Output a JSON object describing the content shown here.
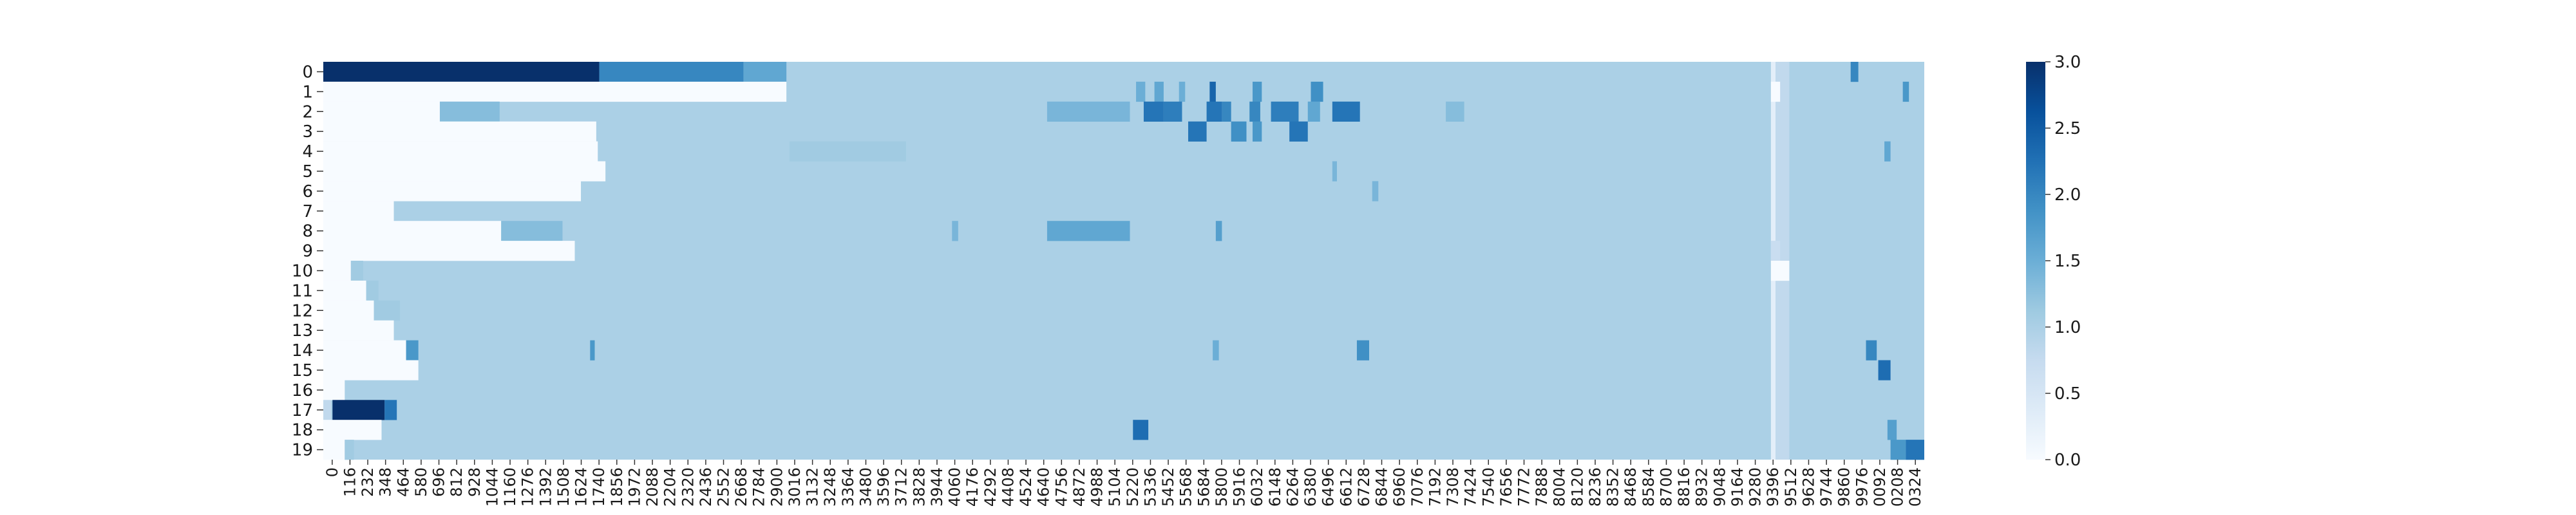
{
  "chart_data": {
    "type": "heatmap",
    "title": "",
    "xlabel": "",
    "ylabel": "",
    "color_scale": {
      "name": "Blues",
      "min": 0.0,
      "max": 3.0
    },
    "colorbar": {
      "ticks": [
        0.0,
        0.5,
        1.0,
        1.5,
        2.0,
        2.5,
        3.0
      ],
      "tick_labels": [
        "0.0",
        "0.5",
        "1.0",
        "1.5",
        "2.0",
        "2.5",
        "3.0"
      ]
    },
    "row_labels": [
      "0",
      "1",
      "2",
      "3",
      "4",
      "5",
      "6",
      "7",
      "8",
      "9",
      "10",
      "11",
      "12",
      "13",
      "14",
      "15",
      "16",
      "17",
      "18",
      "19"
    ],
    "x_tick_labels": [
      "0",
      "116",
      "232",
      "348",
      "464",
      "580",
      "696",
      "812",
      "928",
      "1044",
      "1160",
      "1276",
      "1392",
      "1508",
      "1624",
      "1740",
      "1856",
      "1972",
      "2088",
      "2204",
      "2320",
      "2436",
      "2552",
      "2668",
      "2784",
      "2900",
      "3016",
      "3132",
      "3248",
      "3364",
      "3480",
      "3596",
      "3712",
      "3828",
      "3944",
      "4060",
      "4176",
      "4292",
      "4408",
      "4524",
      "4640",
      "4756",
      "4872",
      "4988",
      "5104",
      "5220",
      "5336",
      "5452",
      "5568",
      "5684",
      "5800",
      "5916",
      "6032",
      "6148",
      "6264",
      "6380",
      "6496",
      "6612",
      "6728",
      "6844",
      "6960",
      "7076",
      "7192",
      "7308",
      "7424",
      "7540",
      "7656",
      "7772",
      "7888",
      "8004",
      "8120",
      "8236",
      "8352",
      "8468",
      "8584",
      "8700",
      "8816",
      "8932",
      "9048",
      "9164",
      "9280",
      "9396",
      "9512",
      "9628",
      "9744",
      "9860",
      "9976",
      "0092",
      "0208",
      "0324"
    ],
    "x_range": [
      0,
      10440
    ],
    "background_value": 1.0,
    "segments": [
      {
        "row": 0,
        "x": [
          0,
          1800
        ],
        "v": 3.0
      },
      {
        "row": 0,
        "x": [
          1800,
          2740
        ],
        "v": 2.0
      },
      {
        "row": 0,
        "x": [
          2740,
          3020
        ],
        "v": 1.6
      },
      {
        "row": 0,
        "x": [
          9960,
          10010
        ],
        "v": 2.0
      },
      {
        "row": 1,
        "x": [
          0,
          3020
        ],
        "v": 0.0
      },
      {
        "row": 1,
        "x": [
          5300,
          5360
        ],
        "v": 1.5
      },
      {
        "row": 1,
        "x": [
          5420,
          5480
        ],
        "v": 1.6
      },
      {
        "row": 1,
        "x": [
          5580,
          5620
        ],
        "v": 1.5
      },
      {
        "row": 1,
        "x": [
          5780,
          5820
        ],
        "v": 2.4
      },
      {
        "row": 1,
        "x": [
          6060,
          6120
        ],
        "v": 1.8
      },
      {
        "row": 1,
        "x": [
          6440,
          6520
        ],
        "v": 1.9
      },
      {
        "row": 1,
        "x": [
          9440,
          9500
        ],
        "v": 0.0
      },
      {
        "row": 1,
        "x": [
          10300,
          10340
        ],
        "v": 1.8
      },
      {
        "row": 2,
        "x": [
          0,
          760
        ],
        "v": 0.0
      },
      {
        "row": 2,
        "x": [
          760,
          1150
        ],
        "v": 1.3
      },
      {
        "row": 2,
        "x": [
          4720,
          5260
        ],
        "v": 1.4
      },
      {
        "row": 2,
        "x": [
          5350,
          5480
        ],
        "v": 2.2
      },
      {
        "row": 2,
        "x": [
          5480,
          5600
        ],
        "v": 2.1
      },
      {
        "row": 2,
        "x": [
          5760,
          5860
        ],
        "v": 2.2
      },
      {
        "row": 2,
        "x": [
          5860,
          5920
        ],
        "v": 2.0
      },
      {
        "row": 2,
        "x": [
          6040,
          6110
        ],
        "v": 2.0
      },
      {
        "row": 2,
        "x": [
          6180,
          6360
        ],
        "v": 2.1
      },
      {
        "row": 2,
        "x": [
          6420,
          6500
        ],
        "v": 1.6
      },
      {
        "row": 2,
        "x": [
          6580,
          6760
        ],
        "v": 2.2
      },
      {
        "row": 2,
        "x": [
          7320,
          7440
        ],
        "v": 1.3
      },
      {
        "row": 3,
        "x": [
          0,
          1780
        ],
        "v": 0.0
      },
      {
        "row": 3,
        "x": [
          5640,
          5760
        ],
        "v": 2.2
      },
      {
        "row": 3,
        "x": [
          5920,
          6020
        ],
        "v": 1.9
      },
      {
        "row": 3,
        "x": [
          6060,
          6120
        ],
        "v": 1.8
      },
      {
        "row": 3,
        "x": [
          6300,
          6420
        ],
        "v": 2.2
      },
      {
        "row": 4,
        "x": [
          0,
          1790
        ],
        "v": 0.0
      },
      {
        "row": 4,
        "x": [
          3040,
          3800
        ],
        "v": 1.1
      },
      {
        "row": 4,
        "x": [
          10180,
          10220
        ],
        "v": 1.6
      },
      {
        "row": 5,
        "x": [
          0,
          1840
        ],
        "v": 0.0
      },
      {
        "row": 5,
        "x": [
          6580,
          6610
        ],
        "v": 1.4
      },
      {
        "row": 6,
        "x": [
          0,
          1680
        ],
        "v": 0.0
      },
      {
        "row": 6,
        "x": [
          6840,
          6880
        ],
        "v": 1.4
      },
      {
        "row": 7,
        "x": [
          0,
          460
        ],
        "v": 0.0
      },
      {
        "row": 8,
        "x": [
          0,
          1160
        ],
        "v": 0.0
      },
      {
        "row": 8,
        "x": [
          1160,
          1560
        ],
        "v": 1.3
      },
      {
        "row": 8,
        "x": [
          4720,
          5260
        ],
        "v": 1.6
      },
      {
        "row": 8,
        "x": [
          4100,
          4140
        ],
        "v": 1.4
      },
      {
        "row": 8,
        "x": [
          5820,
          5860
        ],
        "v": 1.7
      },
      {
        "row": 9,
        "x": [
          0,
          1640
        ],
        "v": 0.0
      },
      {
        "row": 9,
        "x": [
          9440,
          9500
        ],
        "v": 0.7
      },
      {
        "row": 10,
        "x": [
          0,
          180
        ],
        "v": 0.0
      },
      {
        "row": 10,
        "x": [
          180,
          260
        ],
        "v": 1.1
      },
      {
        "row": 10,
        "x": [
          9440,
          9560
        ],
        "v": 0.0
      },
      {
        "row": 11,
        "x": [
          0,
          280
        ],
        "v": 0.0
      },
      {
        "row": 11,
        "x": [
          280,
          360
        ],
        "v": 1.1
      },
      {
        "row": 12,
        "x": [
          0,
          330
        ],
        "v": 0.0
      },
      {
        "row": 12,
        "x": [
          330,
          500
        ],
        "v": 1.1
      },
      {
        "row": 13,
        "x": [
          0,
          460
        ],
        "v": 0.0
      },
      {
        "row": 14,
        "x": [
          0,
          540
        ],
        "v": 0.0
      },
      {
        "row": 14,
        "x": [
          540,
          620
        ],
        "v": 1.8
      },
      {
        "row": 14,
        "x": [
          1740,
          1770
        ],
        "v": 1.8
      },
      {
        "row": 14,
        "x": [
          6740,
          6820
        ],
        "v": 1.9
      },
      {
        "row": 14,
        "x": [
          5800,
          5840
        ],
        "v": 1.5
      },
      {
        "row": 14,
        "x": [
          10060,
          10130
        ],
        "v": 2.0
      },
      {
        "row": 15,
        "x": [
          0,
          620
        ],
        "v": 0.0
      },
      {
        "row": 15,
        "x": [
          10140,
          10220
        ],
        "v": 2.3
      },
      {
        "row": 16,
        "x": [
          0,
          140
        ],
        "v": 0.0
      },
      {
        "row": 17,
        "x": [
          0,
          50
        ],
        "v": 0.8
      },
      {
        "row": 17,
        "x": [
          60,
          400
        ],
        "v": 3.0
      },
      {
        "row": 17,
        "x": [
          400,
          480
        ],
        "v": 2.2
      },
      {
        "row": 17,
        "x": [
          480,
          560
        ],
        "v": 1.0
      },
      {
        "row": 18,
        "x": [
          0,
          380
        ],
        "v": 0.0
      },
      {
        "row": 18,
        "x": [
          5280,
          5380
        ],
        "v": 2.3
      },
      {
        "row": 18,
        "x": [
          10200,
          10260
        ],
        "v": 1.7
      },
      {
        "row": 19,
        "x": [
          0,
          140
        ],
        "v": 0.0
      },
      {
        "row": 19,
        "x": [
          140,
          200
        ],
        "v": 1.1
      },
      {
        "row": 19,
        "x": [
          10220,
          10320
        ],
        "v": 1.8
      },
      {
        "row": 19,
        "x": [
          10320,
          10440
        ],
        "v": 2.2
      }
    ],
    "column_bands": [
      {
        "x": [
          9440,
          9470
        ],
        "v": 0.3
      },
      {
        "x": [
          9470,
          9560
        ],
        "v": 0.8
      }
    ]
  }
}
